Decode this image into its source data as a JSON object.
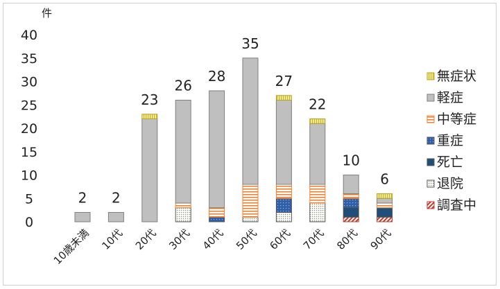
{
  "chart_data": {
    "type": "bar",
    "stacked": true,
    "y_unit": "件",
    "ylim": [
      0,
      40
    ],
    "y_ticks": [
      0,
      5,
      10,
      15,
      20,
      25,
      30,
      35,
      40
    ],
    "categories": [
      "10歳未満",
      "10代",
      "20代",
      "30代",
      "40代",
      "50代",
      "60代",
      "70代",
      "80代",
      "90代"
    ],
    "totals": [
      2,
      2,
      23,
      26,
      28,
      35,
      27,
      22,
      10,
      6
    ],
    "series": [
      {
        "name": "調査中",
        "color": "#c0392b",
        "pattern": "diag",
        "values": [
          0,
          0,
          0,
          0,
          0,
          0,
          0,
          0,
          1,
          1
        ]
      },
      {
        "name": "退院",
        "color": "#9aa58a",
        "pattern": "dots",
        "values": [
          0,
          0,
          0,
          3,
          0,
          1,
          2,
          4,
          0,
          0
        ]
      },
      {
        "name": "死亡",
        "color": "#1f4e79",
        "pattern": "solid",
        "values": [
          0,
          0,
          0,
          0,
          0,
          0,
          0,
          0,
          2,
          2
        ]
      },
      {
        "name": "重症",
        "color": "#2e5fa8",
        "pattern": "dots",
        "values": [
          0,
          0,
          0,
          0,
          1,
          0,
          3,
          0,
          2,
          0
        ]
      },
      {
        "name": "中等症",
        "color": "#f08030",
        "pattern": "hlines",
        "values": [
          0,
          0,
          0,
          1,
          2,
          7,
          3,
          4,
          1,
          1
        ]
      },
      {
        "name": "軽症",
        "color": "#bfbfbf",
        "pattern": "solid",
        "values": [
          2,
          2,
          22,
          22,
          25,
          27,
          18,
          13,
          4,
          1
        ]
      },
      {
        "name": "無症状",
        "color": "#e8d44d",
        "pattern": "vlines",
        "values": [
          0,
          0,
          1,
          0,
          0,
          0,
          1,
          1,
          0,
          1
        ]
      }
    ],
    "legend_order": [
      "無症状",
      "軽症",
      "中等症",
      "重症",
      "死亡",
      "退院",
      "調査中"
    ],
    "legend_position": "right",
    "grid": false
  }
}
